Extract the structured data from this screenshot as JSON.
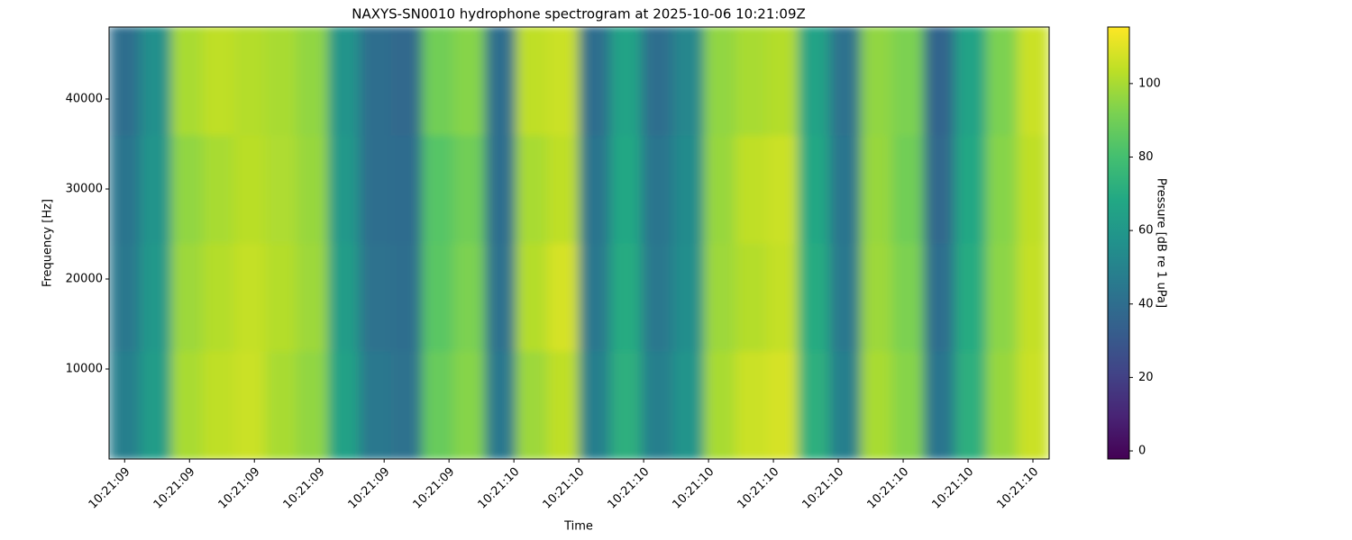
{
  "chart_data": {
    "type": "spectrogram",
    "title": "NAXYS-SN0010 hydrophone spectrogram at 2025-10-06 10:21:09Z",
    "xlabel": "Time",
    "ylabel": "Frequency [Hz]",
    "colorbar_label": "Pressure [dB re 1 uPa]",
    "colormap": "viridis",
    "x_bins": [
      9.376,
      9.4243,
      9.4726,
      9.5209,
      9.5692,
      9.6175,
      9.6658,
      9.7141,
      9.7624,
      9.8107,
      9.859,
      9.9073,
      9.9556,
      10.0039,
      10.0522,
      10.1005,
      10.1488,
      10.1971,
      10.2454,
      10.2937,
      10.342,
      10.3903,
      10.4386,
      10.4869,
      10.5352,
      10.5835,
      10.6318,
      10.6801,
      10.7284,
      10.7767,
      10.825
    ],
    "y_bins": [
      0,
      12000,
      24000,
      36000,
      48000
    ],
    "values": [
      [
        48,
        62,
        100,
        104,
        106,
        100,
        96,
        65,
        45,
        42,
        88,
        94,
        45,
        98,
        104,
        48,
        72,
        48,
        58,
        100,
        106,
        108,
        72,
        48,
        100,
        94,
        43,
        72,
        97,
        106
      ],
      [
        45,
        60,
        98,
        102,
        105,
        102,
        98,
        62,
        42,
        40,
        85,
        92,
        42,
        102,
        108,
        45,
        70,
        45,
        55,
        98,
        102,
        105,
        70,
        45,
        98,
        92,
        40,
        70,
        95,
        105
      ],
      [
        43,
        58,
        96,
        100,
        103,
        101,
        97,
        60,
        40,
        39,
        84,
        90,
        40,
        100,
        104,
        43,
        68,
        43,
        54,
        97,
        104,
        106,
        68,
        43,
        97,
        90,
        38,
        68,
        94,
        104
      ],
      [
        40,
        56,
        100,
        104,
        102,
        100,
        96,
        58,
        40,
        38,
        90,
        94,
        40,
        104,
        106,
        40,
        66,
        40,
        52,
        96,
        100,
        102,
        66,
        42,
        96,
        92,
        36,
        66,
        92,
        106
      ]
    ],
    "xlim": [
      9.376,
      10.825
    ],
    "xticks": [
      {
        "value": 9.4,
        "label": "10:21:09"
      },
      {
        "value": 9.5,
        "label": "10:21:09"
      },
      {
        "value": 9.6,
        "label": "10:21:09"
      },
      {
        "value": 9.7,
        "label": "10:21:09"
      },
      {
        "value": 9.8,
        "label": "10:21:09"
      },
      {
        "value": 9.9,
        "label": "10:21:09"
      },
      {
        "value": 10.0,
        "label": "10:21:10"
      },
      {
        "value": 10.1,
        "label": "10:21:10"
      },
      {
        "value": 10.2,
        "label": "10:21:10"
      },
      {
        "value": 10.3,
        "label": "10:21:10"
      },
      {
        "value": 10.4,
        "label": "10:21:10"
      },
      {
        "value": 10.5,
        "label": "10:21:10"
      },
      {
        "value": 10.6,
        "label": "10:21:10"
      },
      {
        "value": 10.7,
        "label": "10:21:10"
      },
      {
        "value": 10.8,
        "label": "10:21:10"
      }
    ],
    "ylim": [
      0,
      48000
    ],
    "yticks": [
      10000,
      20000,
      30000,
      40000
    ],
    "clim": [
      -2.2,
      115.4
    ],
    "cticks": [
      0,
      20,
      40,
      60,
      80,
      100
    ]
  }
}
